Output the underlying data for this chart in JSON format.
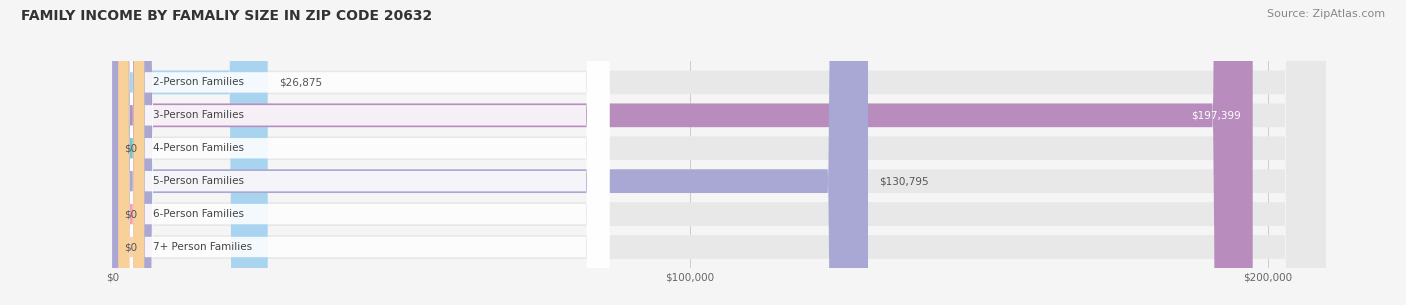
{
  "title": "FAMILY INCOME BY FAMALIY SIZE IN ZIP CODE 20632",
  "source": "Source: ZipAtlas.com",
  "categories": [
    "2-Person Families",
    "3-Person Families",
    "4-Person Families",
    "5-Person Families",
    "6-Person Families",
    "7+ Person Families"
  ],
  "values": [
    26875,
    197399,
    0,
    130795,
    0,
    0
  ],
  "bar_colors": [
    "#a8d4f0",
    "#b88dbe",
    "#6eccc4",
    "#a9a8d4",
    "#f4a0b0",
    "#f7d09a"
  ],
  "value_labels": [
    "$26,875",
    "$197,399",
    "$0",
    "$130,795",
    "$0",
    "$0"
  ],
  "xlim_max": 210000,
  "xticks": [
    0,
    100000,
    200000
  ],
  "xticklabels": [
    "$0",
    "$100,000",
    "$200,000"
  ],
  "background_color": "#f5f5f5",
  "bar_bg_color": "#e8e8e8",
  "title_fontsize": 10,
  "source_fontsize": 8,
  "label_fontsize": 7.5,
  "value_fontsize": 7.5
}
